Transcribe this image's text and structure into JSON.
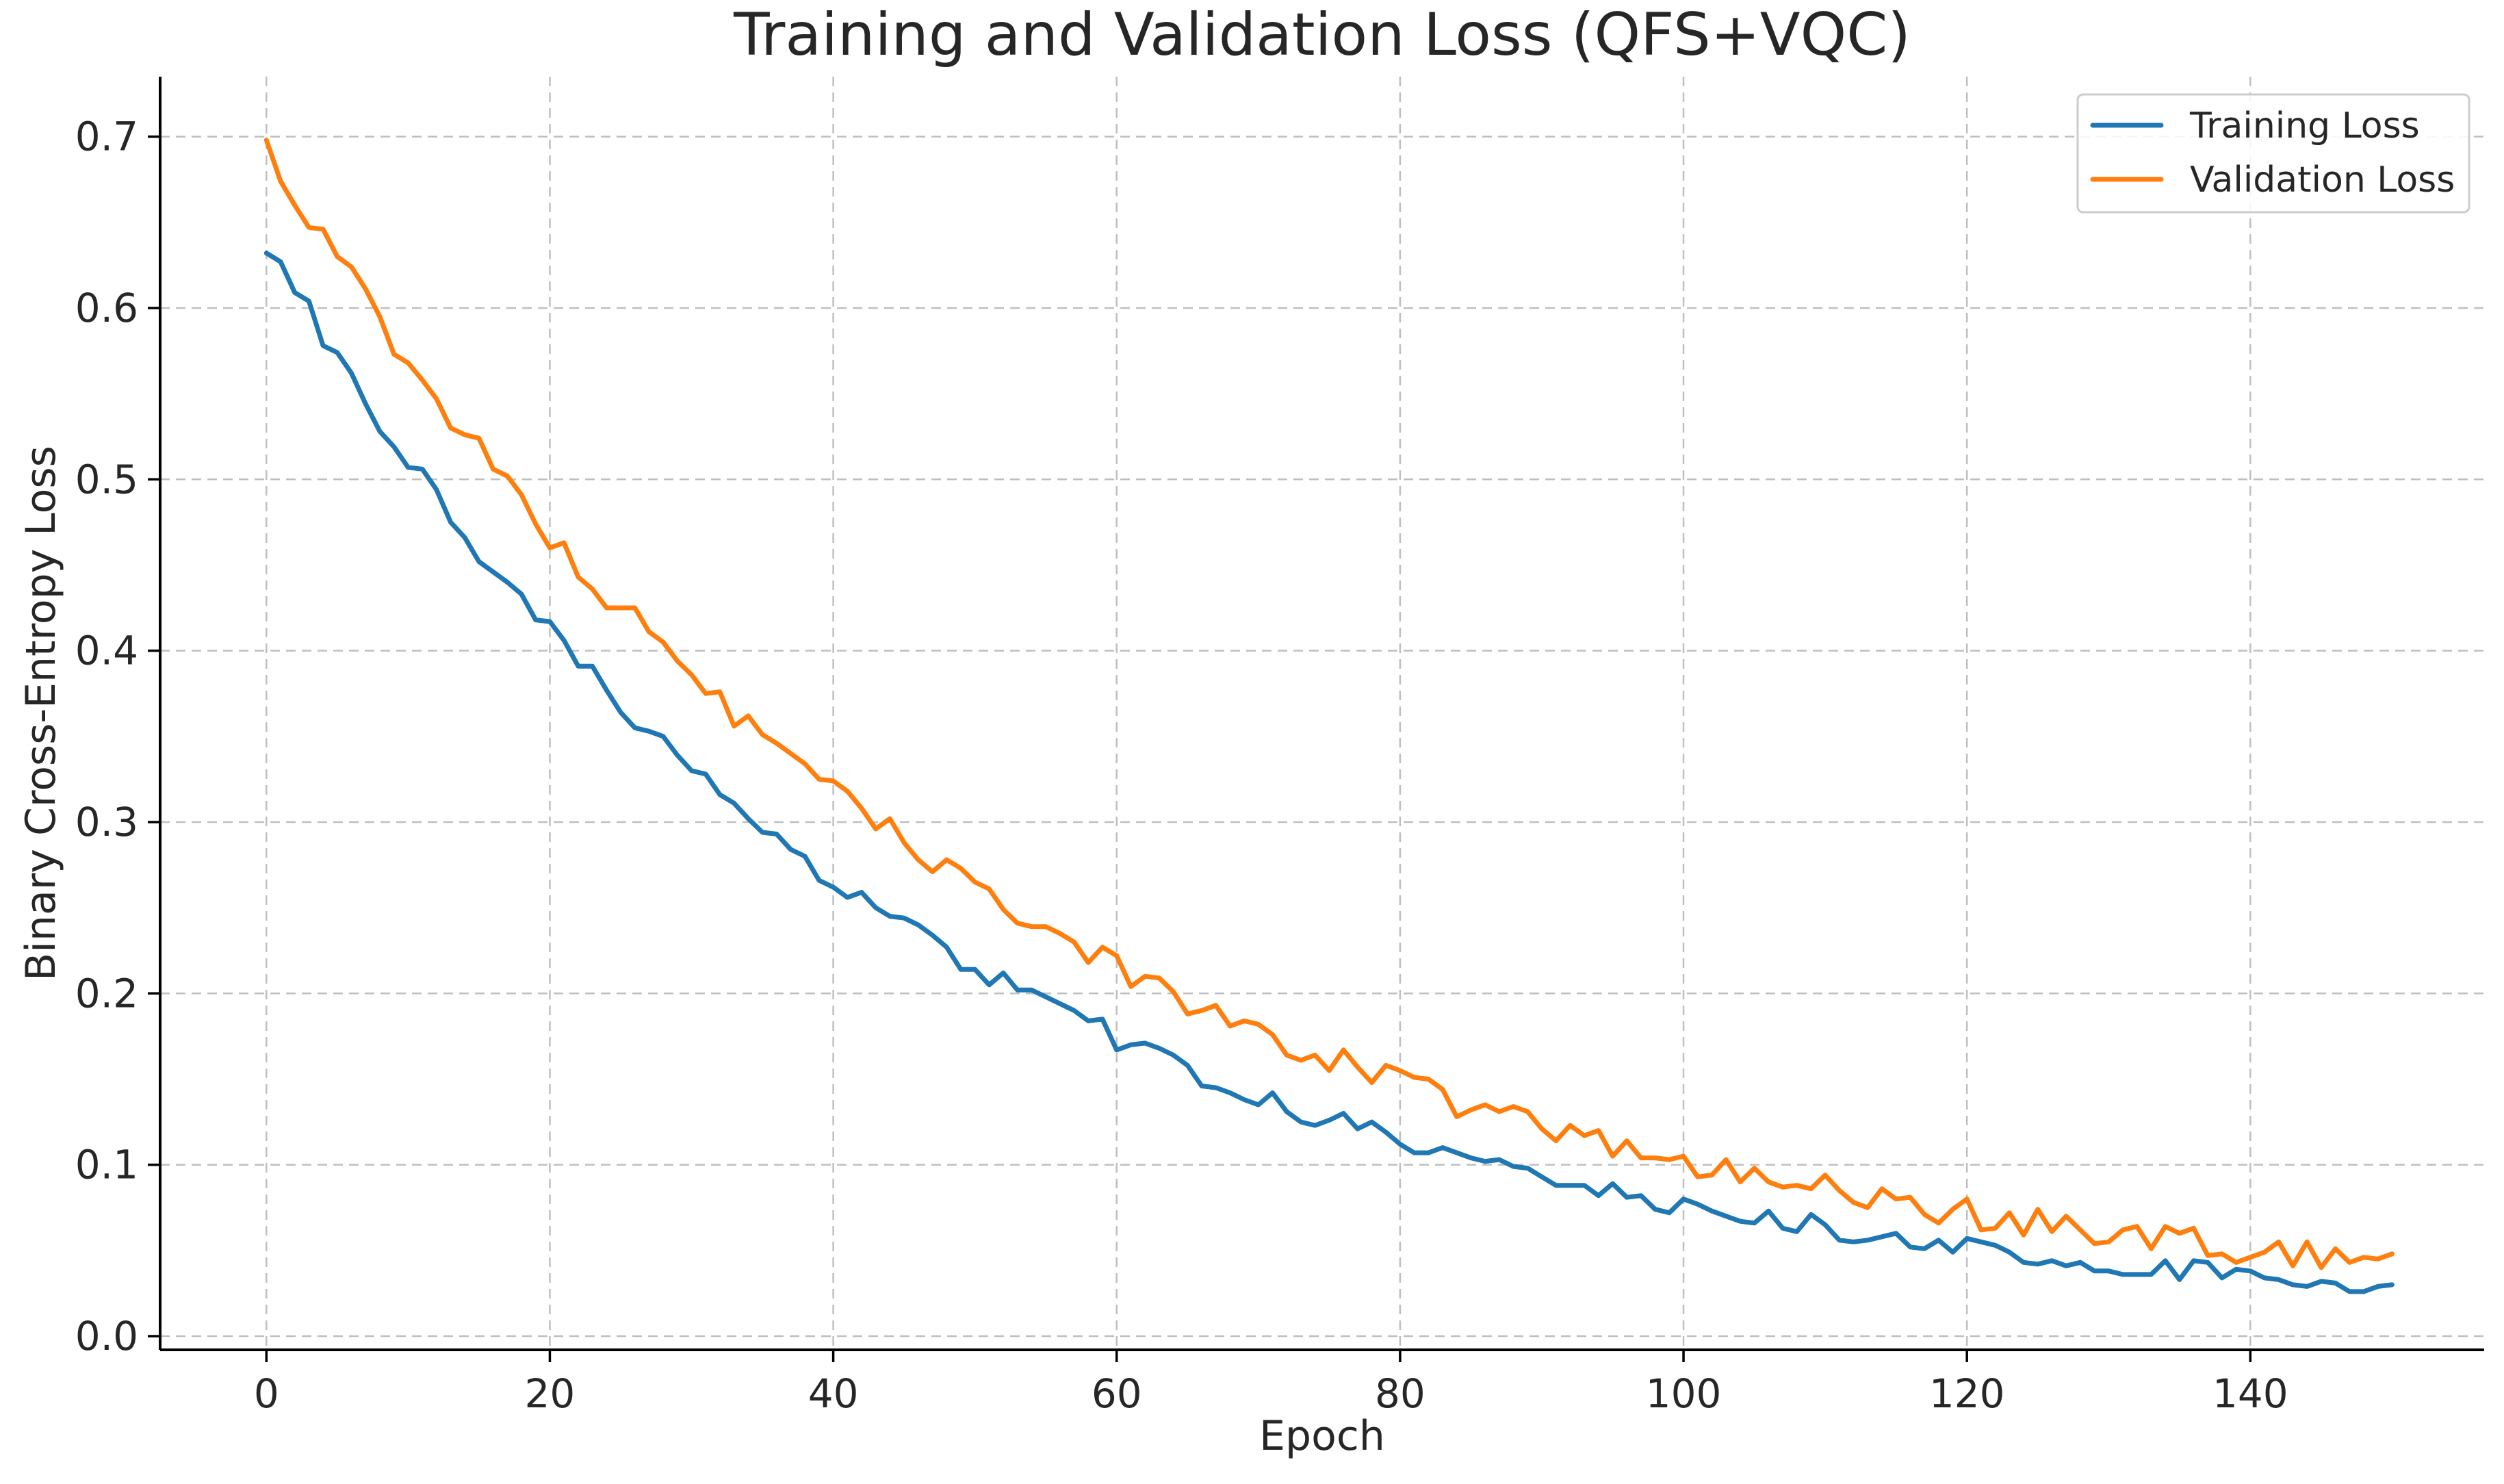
{
  "colors": {
    "training": "#1f77b4",
    "validation": "#ff7f0e",
    "grid": "#b0b0b0",
    "axis": "#000000"
  },
  "chart_data": {
    "type": "line",
    "title": "Training and Validation Loss (QFS+VQC)",
    "xlabel": "Epoch",
    "ylabel": "Binary Cross-Entropy Loss",
    "xlim": [
      -7.5,
      156.5
    ],
    "ylim": [
      -0.008,
      0.735
    ],
    "grid": true,
    "legend_position": "top-right",
    "x_ticks": [
      0,
      20,
      40,
      60,
      80,
      100,
      120,
      140
    ],
    "x_tick_labels": [
      "0",
      "20",
      "40",
      "60",
      "80",
      "100",
      "120",
      "140"
    ],
    "y_ticks": [
      0.0,
      0.1,
      0.2,
      0.3,
      0.4,
      0.5,
      0.6,
      0.7
    ],
    "y_tick_labels": [
      "0.0",
      "0.1",
      "0.2",
      "0.3",
      "0.4",
      "0.5",
      "0.6",
      "0.7"
    ],
    "x_start": 0,
    "x_step": 1,
    "series": [
      {
        "name": "Training Loss",
        "color": "#1f77b4",
        "values": [
          0.632,
          0.627,
          0.609,
          0.604,
          0.578,
          0.574,
          0.562,
          0.544,
          0.528,
          0.519,
          0.507,
          0.506,
          0.494,
          0.475,
          0.466,
          0.452,
          0.446,
          0.44,
          0.433,
          0.418,
          0.417,
          0.406,
          0.391,
          0.391,
          0.377,
          0.364,
          0.355,
          0.353,
          0.35,
          0.339,
          0.33,
          0.328,
          0.316,
          0.311,
          0.302,
          0.294,
          0.293,
          0.284,
          0.28,
          0.266,
          0.262,
          0.256,
          0.259,
          0.25,
          0.245,
          0.244,
          0.24,
          0.234,
          0.227,
          0.214,
          0.214,
          0.205,
          0.212,
          0.202,
          0.202,
          0.198,
          0.194,
          0.19,
          0.184,
          0.185,
          0.167,
          0.17,
          0.171,
          0.168,
          0.164,
          0.158,
          0.146,
          0.145,
          0.142,
          0.138,
          0.135,
          0.142,
          0.131,
          0.125,
          0.123,
          0.126,
          0.13,
          0.121,
          0.125,
          0.119,
          0.112,
          0.107,
          0.107,
          0.11,
          0.107,
          0.104,
          0.102,
          0.103,
          0.099,
          0.098,
          0.093,
          0.088,
          0.088,
          0.088,
          0.082,
          0.089,
          0.081,
          0.082,
          0.074,
          0.072,
          0.08,
          0.077,
          0.073,
          0.07,
          0.067,
          0.066,
          0.073,
          0.063,
          0.061,
          0.071,
          0.065,
          0.056,
          0.055,
          0.056,
          0.058,
          0.06,
          0.052,
          0.051,
          0.056,
          0.049,
          0.057,
          0.055,
          0.053,
          0.049,
          0.043,
          0.042,
          0.044,
          0.041,
          0.043,
          0.038,
          0.038,
          0.036,
          0.036,
          0.036,
          0.044,
          0.033,
          0.044,
          0.043,
          0.034,
          0.039,
          0.038,
          0.034,
          0.033,
          0.03,
          0.029,
          0.032,
          0.031,
          0.026,
          0.026,
          0.029,
          0.03
        ]
      },
      {
        "name": "Validation Loss",
        "color": "#ff7f0e",
        "values": [
          0.698,
          0.674,
          0.66,
          0.647,
          0.646,
          0.63,
          0.624,
          0.611,
          0.595,
          0.573,
          0.568,
          0.558,
          0.547,
          0.53,
          0.526,
          0.524,
          0.506,
          0.502,
          0.491,
          0.474,
          0.46,
          0.463,
          0.443,
          0.436,
          0.425,
          0.425,
          0.425,
          0.411,
          0.405,
          0.394,
          0.386,
          0.375,
          0.376,
          0.356,
          0.362,
          0.351,
          0.346,
          0.34,
          0.334,
          0.325,
          0.324,
          0.318,
          0.308,
          0.296,
          0.302,
          0.288,
          0.278,
          0.271,
          0.278,
          0.273,
          0.265,
          0.261,
          0.249,
          0.241,
          0.239,
          0.239,
          0.235,
          0.23,
          0.218,
          0.227,
          0.222,
          0.204,
          0.21,
          0.209,
          0.201,
          0.188,
          0.19,
          0.193,
          0.181,
          0.184,
          0.182,
          0.176,
          0.164,
          0.161,
          0.164,
          0.155,
          0.167,
          0.157,
          0.148,
          0.158,
          0.155,
          0.151,
          0.15,
          0.144,
          0.128,
          0.132,
          0.135,
          0.131,
          0.134,
          0.131,
          0.121,
          0.114,
          0.123,
          0.117,
          0.12,
          0.105,
          0.114,
          0.104,
          0.104,
          0.103,
          0.105,
          0.093,
          0.094,
          0.103,
          0.09,
          0.098,
          0.09,
          0.087,
          0.088,
          0.086,
          0.094,
          0.085,
          0.078,
          0.075,
          0.086,
          0.08,
          0.081,
          0.071,
          0.066,
          0.074,
          0.08,
          0.062,
          0.063,
          0.072,
          0.059,
          0.074,
          0.061,
          0.07,
          0.062,
          0.054,
          0.055,
          0.062,
          0.064,
          0.051,
          0.064,
          0.06,
          0.063,
          0.047,
          0.048,
          0.043,
          0.046,
          0.049,
          0.055,
          0.041,
          0.055,
          0.04,
          0.051,
          0.043,
          0.046,
          0.045,
          0.048
        ]
      }
    ]
  }
}
